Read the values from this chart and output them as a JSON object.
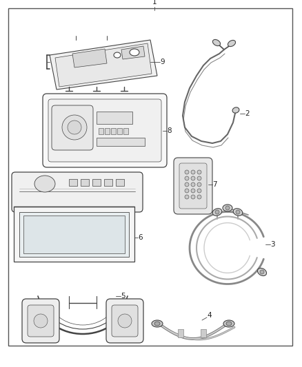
{
  "bg_color": "#ffffff",
  "border_color": "#444444",
  "line_color": "#444444",
  "label_color": "#222222",
  "fig_width": 4.38,
  "fig_height": 5.33,
  "dpi": 100
}
